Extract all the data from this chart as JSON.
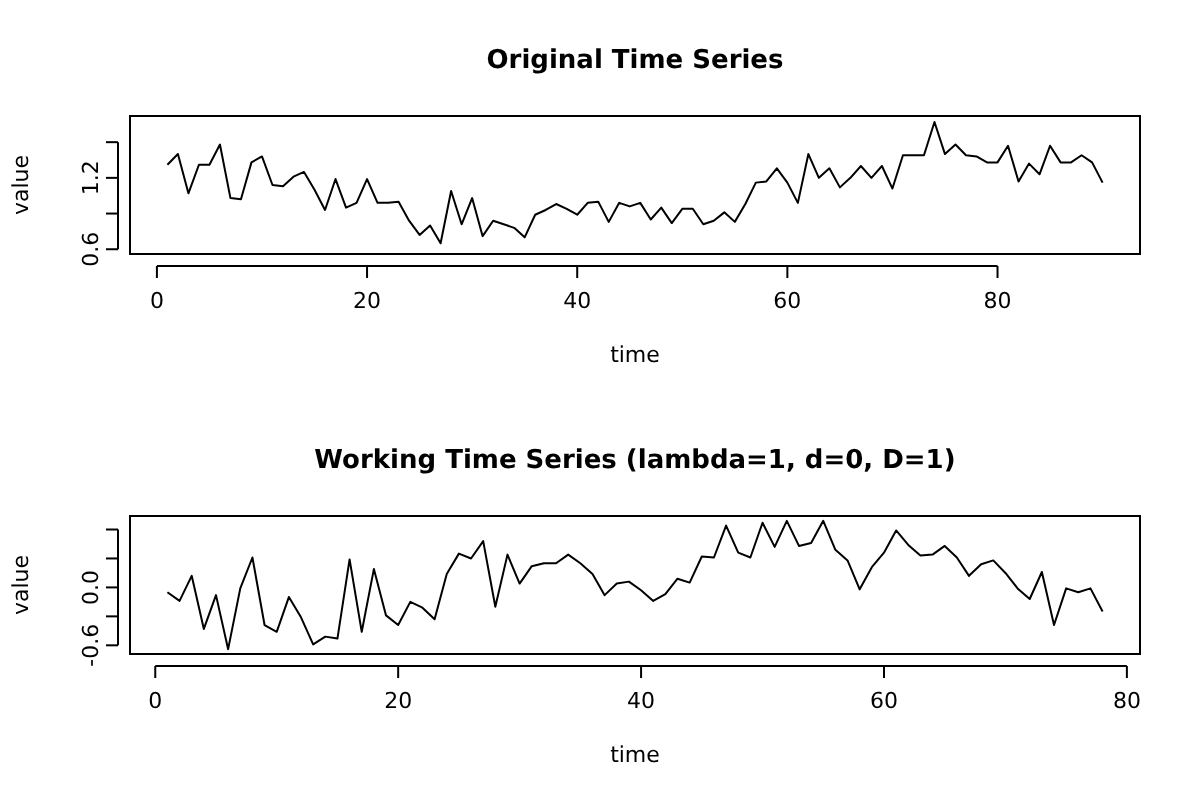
{
  "chart_data": [
    {
      "type": "line",
      "title": "Original Time Series",
      "xlabel": "time",
      "ylabel": "value",
      "x": [
        1,
        2,
        3,
        4,
        5,
        6,
        7,
        8,
        9,
        10,
        11,
        12,
        13,
        14,
        15,
        16,
        17,
        18,
        19,
        20,
        21,
        22,
        23,
        24,
        25,
        26,
        27,
        28,
        29,
        30,
        31,
        32,
        33,
        34,
        35,
        36,
        37,
        38,
        39,
        40,
        41,
        42,
        43,
        44,
        45,
        46,
        47,
        48,
        49,
        50,
        51,
        52,
        53,
        54,
        55,
        56,
        57,
        58,
        59,
        60,
        61,
        62,
        63,
        64,
        65,
        66,
        67,
        68,
        69,
        70,
        71,
        72,
        73,
        74,
        75,
        76,
        77,
        78,
        79,
        80,
        81,
        82,
        83,
        84,
        85,
        86,
        87,
        88,
        89,
        90
      ],
      "series": [
        {
          "color": "#000000",
          "values": [
            1.31,
            1.4,
            1.07,
            1.31,
            1.31,
            1.48,
            1.03,
            1.02,
            1.33,
            1.38,
            1.14,
            1.13,
            1.21,
            1.25,
            1.1,
            0.93,
            1.19,
            0.95,
            0.99,
            1.19,
            0.99,
            0.99,
            1.0,
            0.84,
            0.72,
            0.8,
            0.65,
            1.09,
            0.81,
            1.03,
            0.71,
            0.84,
            0.81,
            0.78,
            0.7,
            0.89,
            0.93,
            0.98,
            0.94,
            0.89,
            0.99,
            1.0,
            0.83,
            0.99,
            0.96,
            0.99,
            0.85,
            0.95,
            0.82,
            0.94,
            0.94,
            0.81,
            0.84,
            0.91,
            0.83,
            0.98,
            1.16,
            1.17,
            1.28,
            1.16,
            0.99,
            1.4,
            1.2,
            1.28,
            1.12,
            1.2,
            1.3,
            1.2,
            1.3,
            1.11,
            1.39,
            1.39,
            1.39,
            1.67,
            1.4,
            1.48,
            1.39,
            1.38,
            1.33,
            1.33,
            1.47,
            1.17,
            1.32,
            1.23,
            1.47,
            1.33,
            1.33,
            1.39,
            1.33,
            1.16
          ]
        }
      ],
      "xlim": [
        -2.56,
        93.56
      ],
      "xticks": [
        0,
        20,
        40,
        60,
        80
      ],
      "ylim": [
        0.56,
        1.72
      ],
      "yticks": [
        0.6,
        {
          "value": 0.9,
          "label": null
        },
        1.2,
        {
          "value": 1.5,
          "label": null
        }
      ],
      "grid": false,
      "marker": "none",
      "line_style": "solid"
    },
    {
      "type": "line",
      "title": "Working Time Series (lambda=1, d=0, D=1)",
      "xlabel": "time",
      "ylabel": "value",
      "x": [
        1,
        2,
        3,
        4,
        5,
        6,
        7,
        8,
        9,
        10,
        11,
        12,
        13,
        14,
        15,
        16,
        17,
        18,
        19,
        20,
        21,
        22,
        23,
        24,
        25,
        26,
        27,
        28,
        29,
        30,
        31,
        32,
        33,
        34,
        35,
        36,
        37,
        38,
        39,
        40,
        41,
        42,
        43,
        44,
        45,
        46,
        47,
        48,
        49,
        50,
        51,
        52,
        53,
        54,
        55,
        56,
        57,
        58,
        59,
        60,
        61,
        62,
        63,
        64,
        65,
        66,
        67,
        68,
        69,
        70,
        71,
        72,
        73,
        74,
        75,
        76,
        77,
        78
      ],
      "series": [
        {
          "color": "#000000",
          "values": [
            -0.05,
            -0.14,
            0.12,
            -0.43,
            -0.08,
            -0.64,
            -0.01,
            0.31,
            -0.39,
            -0.46,
            -0.1,
            -0.31,
            -0.59,
            -0.51,
            -0.53,
            0.29,
            -0.46,
            0.19,
            -0.29,
            -0.39,
            -0.15,
            -0.21,
            -0.33,
            0.14,
            0.35,
            0.3,
            0.48,
            -0.2,
            0.34,
            0.04,
            0.22,
            0.25,
            0.25,
            0.34,
            0.25,
            0.14,
            -0.08,
            0.04,
            0.06,
            -0.03,
            -0.14,
            -0.07,
            0.09,
            0.05,
            0.32,
            0.31,
            0.64,
            0.36,
            0.31,
            0.67,
            0.42,
            0.69,
            0.43,
            0.46,
            0.69,
            0.39,
            0.28,
            -0.02,
            0.21,
            0.36,
            0.59,
            0.44,
            0.33,
            0.34,
            0.43,
            0.31,
            0.12,
            0.24,
            0.28,
            0.15,
            -0.01,
            -0.12,
            0.16,
            -0.39,
            -0.01,
            -0.05,
            -0.01,
            -0.25
          ]
        }
      ],
      "xlim": [
        -2.08,
        81.08
      ],
      "xticks": [
        0,
        20,
        40,
        60,
        80
      ],
      "ylim": [
        -0.69,
        0.74
      ],
      "yticks": [
        -0.6,
        {
          "value": -0.3,
          "label": null
        },
        {
          "value": 0,
          "label": "0.0"
        },
        {
          "value": 0.3,
          "label": null
        },
        {
          "value": 0.6,
          "label": null
        }
      ],
      "grid": false,
      "marker": "none",
      "line_style": "solid"
    }
  ]
}
